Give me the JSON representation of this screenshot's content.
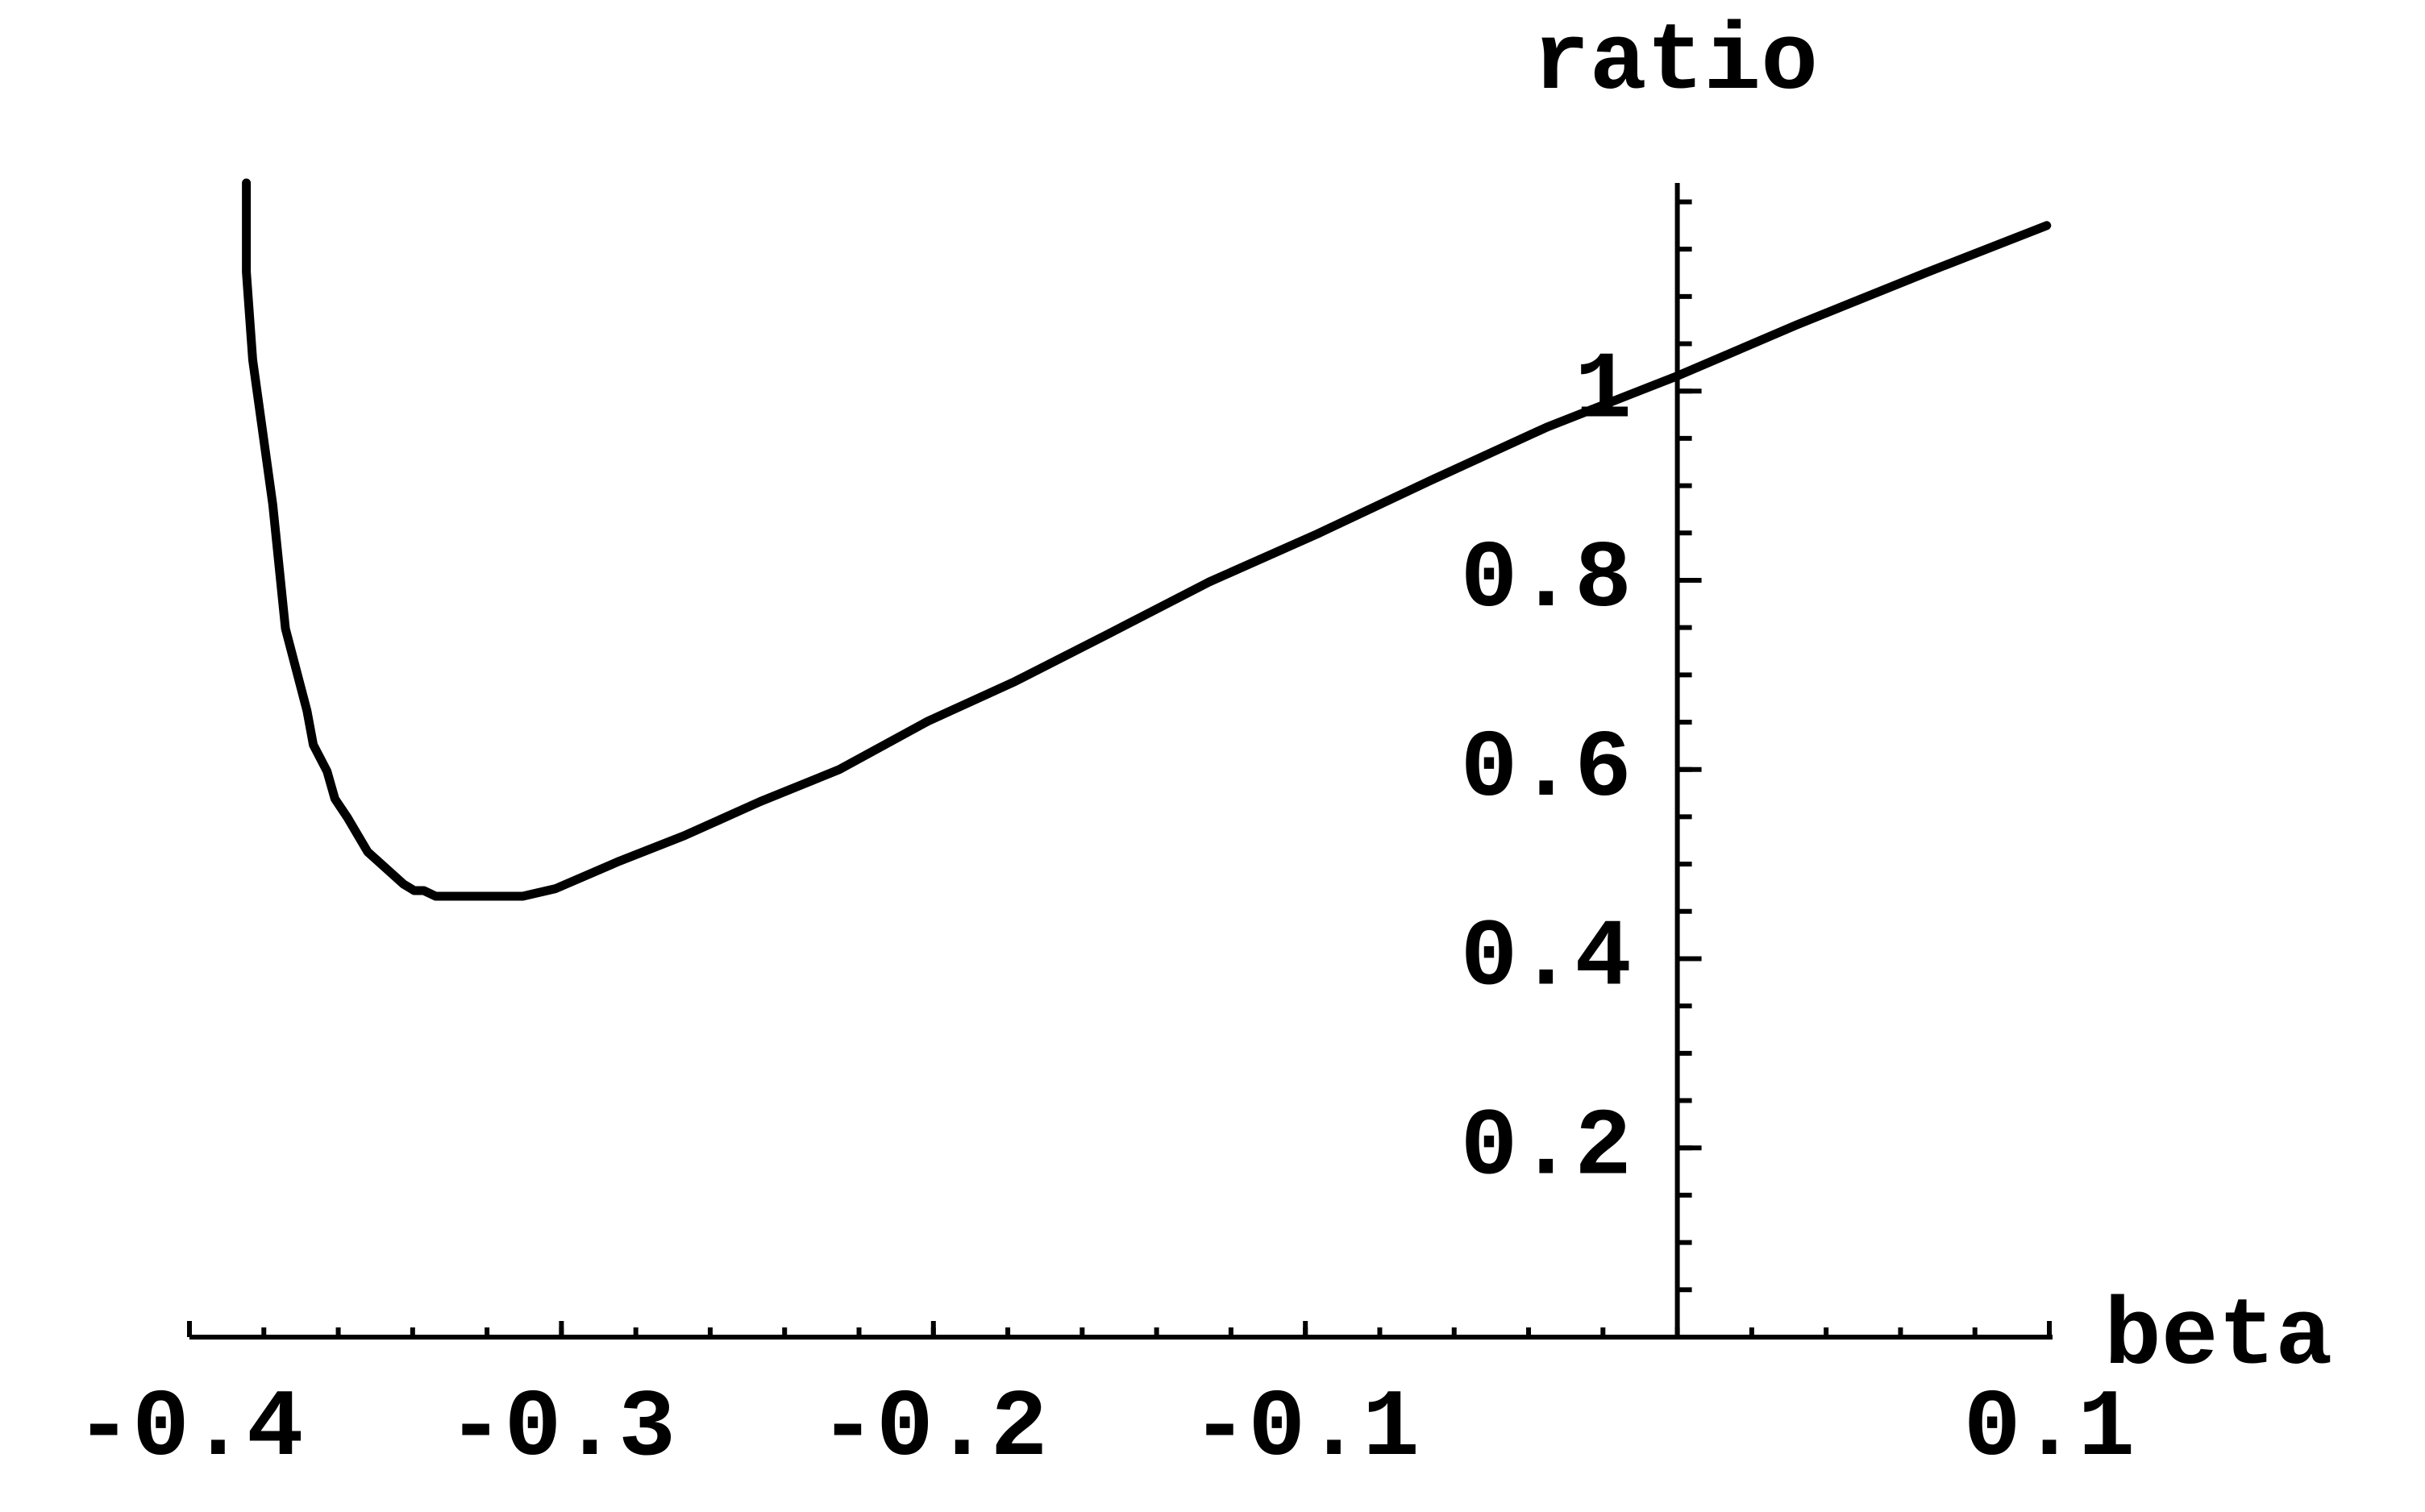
{
  "chart_data": {
    "type": "line",
    "xlabel": "beta",
    "ylabel": "ratio",
    "x": [
      -0.3847,
      -0.3847,
      -0.383,
      -0.3776,
      -0.3742,
      -0.3684,
      -0.3667,
      -0.363,
      -0.3609,
      -0.3575,
      -0.3521,
      -0.3425,
      -0.3396,
      -0.337,
      -0.3338,
      -0.3104,
      -0.3016,
      -0.2845,
      -0.267,
      -0.2466,
      -0.2253,
      -0.2015,
      -0.1781,
      -0.1531,
      -0.126,
      -0.0968,
      -0.0655,
      -0.035,
      0,
      0.0321,
      0.0668,
      0.0993
    ],
    "series": [
      {
        "color": "#000000",
        "values": [
          1.22,
          1.126,
          1.033,
          0.88,
          0.749,
          0.662,
          0.626,
          0.598,
          0.569,
          0.549,
          0.513,
          0.479,
          0.472,
          0.472,
          0.466,
          0.466,
          0.474,
          0.503,
          0.53,
          0.566,
          0.6,
          0.651,
          0.693,
          0.743,
          0.798,
          0.849,
          0.907,
          0.962,
          1.016,
          1.07,
          1.125,
          1.175
        ]
      }
    ],
    "xlim": [
      -0.4,
      0.1
    ],
    "ylim": [
      0,
      1.22
    ],
    "xticks": [
      -0.4,
      -0.3,
      -0.2,
      -0.1,
      0.1
    ],
    "yticks": [
      0.2,
      0.4,
      0.6,
      0.8,
      1
    ]
  }
}
